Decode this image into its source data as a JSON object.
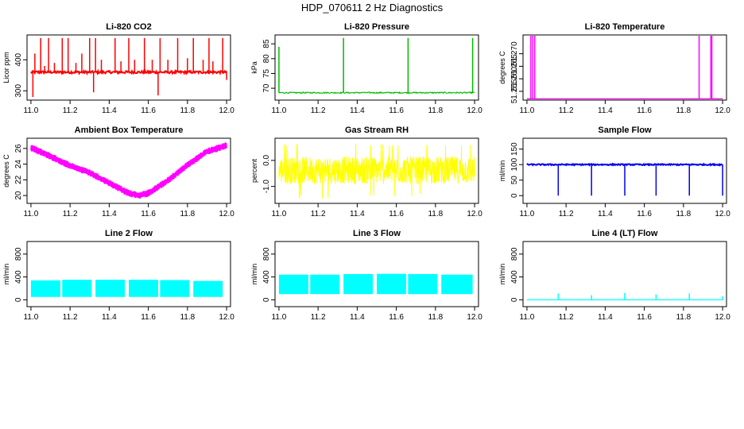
{
  "figure": {
    "title": "HDP_070611  2 Hz Diagnostics"
  },
  "chart_data": [
    {
      "id": "co2",
      "type": "line",
      "title": "Li-820 CO2",
      "xlabel": "",
      "ylabel": "Licor ppm",
      "color": "#ff0000",
      "xlim": [
        10.98,
        12.02
      ],
      "ylim": [
        270,
        480
      ],
      "xticks": [
        "11.0",
        "11.2",
        "11.4",
        "11.6",
        "11.8",
        "12.0"
      ],
      "yticks": [
        "300",
        "400"
      ],
      "series": [
        {
          "baseline": 360,
          "noise": 4,
          "spikes": [
            {
              "x": 11.01,
              "y": 280
            },
            {
              "x": 11.02,
              "y": 420
            },
            {
              "x": 11.05,
              "y": 470
            },
            {
              "x": 11.07,
              "y": 380
            },
            {
              "x": 11.09,
              "y": 470
            },
            {
              "x": 11.12,
              "y": 390
            },
            {
              "x": 11.16,
              "y": 470
            },
            {
              "x": 11.19,
              "y": 470
            },
            {
              "x": 11.23,
              "y": 390
            },
            {
              "x": 11.26,
              "y": 420
            },
            {
              "x": 11.3,
              "y": 470
            },
            {
              "x": 11.32,
              "y": 295
            },
            {
              "x": 11.33,
              "y": 470
            },
            {
              "x": 11.36,
              "y": 400
            },
            {
              "x": 11.43,
              "y": 470
            },
            {
              "x": 11.46,
              "y": 395
            },
            {
              "x": 11.5,
              "y": 470
            },
            {
              "x": 11.53,
              "y": 400
            },
            {
              "x": 11.58,
              "y": 470
            },
            {
              "x": 11.62,
              "y": 400
            },
            {
              "x": 11.65,
              "y": 285
            },
            {
              "x": 11.66,
              "y": 470
            },
            {
              "x": 11.7,
              "y": 400
            },
            {
              "x": 11.75,
              "y": 470
            },
            {
              "x": 11.8,
              "y": 405
            },
            {
              "x": 11.83,
              "y": 470
            },
            {
              "x": 11.88,
              "y": 400
            },
            {
              "x": 11.91,
              "y": 470
            },
            {
              "x": 11.93,
              "y": 395
            },
            {
              "x": 11.98,
              "y": 470
            },
            {
              "x": 12.0,
              "y": 335
            }
          ]
        }
      ]
    },
    {
      "id": "pressure",
      "type": "line",
      "title": "Li-820 Pressure",
      "xlabel": "",
      "ylabel": "kPa",
      "color": "#00bb00",
      "xlim": [
        10.98,
        12.02
      ],
      "ylim": [
        66,
        88
      ],
      "xticks": [
        "11.0",
        "11.2",
        "11.4",
        "11.6",
        "11.8",
        "12.0"
      ],
      "yticks": [
        "70",
        "75",
        "80",
        "85"
      ],
      "series": [
        {
          "baseline": 68.5,
          "noise": 0.2,
          "spikes": [
            {
              "x": 11.0,
              "y": 84
            },
            {
              "x": 11.33,
              "y": 87
            },
            {
              "x": 11.66,
              "y": 87
            },
            {
              "x": 11.99,
              "y": 87
            }
          ]
        }
      ]
    },
    {
      "id": "licor_temp",
      "type": "line",
      "title": "Li-820 Temperature",
      "xlabel": "",
      "ylabel": "degrees C",
      "color": "#ff00ff",
      "xlim": [
        10.98,
        12.02
      ],
      "ylim": [
        51.2515,
        51.2775
      ],
      "xticks": [
        "11.0",
        "11.2",
        "11.4",
        "11.6",
        "11.8",
        "12.0"
      ],
      "yticks": [
        "51.255",
        "51.260",
        "51.265",
        "51.270"
      ],
      "series": [
        {
          "baseline": 51.252,
          "noise": 0,
          "spikes": [
            {
              "x": 11.02,
              "y": 51.278
            },
            {
              "x": 11.03,
              "y": 51.278
            },
            {
              "x": 11.04,
              "y": 51.278
            },
            {
              "x": 11.88,
              "y": 51.278
            },
            {
              "x": 11.94,
              "y": 51.278
            },
            {
              "x": 11.945,
              "y": 51.278
            }
          ]
        }
      ]
    },
    {
      "id": "box_temp",
      "type": "line",
      "title": "Ambient Box Temperature",
      "xlabel": "",
      "ylabel": "degrees C",
      "color": "#ff00ff",
      "xlim": [
        10.98,
        12.02
      ],
      "ylim": [
        19.0,
        27.3
      ],
      "xticks": [
        "11.0",
        "11.2",
        "11.4",
        "11.6",
        "11.8",
        "12.0"
      ],
      "yticks": [
        "20",
        "22",
        "24",
        "26"
      ],
      "series": [
        {
          "band": 0.9,
          "x": [
            11.0,
            11.1,
            11.2,
            11.3,
            11.4,
            11.5,
            11.55,
            11.6,
            11.7,
            11.8,
            11.9,
            12.0
          ],
          "y": [
            26.1,
            25.0,
            23.8,
            22.9,
            21.6,
            20.3,
            20.0,
            20.3,
            21.9,
            23.9,
            25.6,
            26.4
          ]
        }
      ]
    },
    {
      "id": "rh",
      "type": "line",
      "title": "Gas Stream RH",
      "xlabel": "",
      "ylabel": "percent",
      "color": "#ffff00",
      "xlim": [
        10.98,
        12.02
      ],
      "ylim": [
        -1.65,
        0.85
      ],
      "xticks": [
        "11.0",
        "11.2",
        "11.4",
        "11.6",
        "11.8",
        "12.0"
      ],
      "yticks": [
        "-1.0",
        "0.0"
      ],
      "series": [
        {
          "baseline": -0.4,
          "band": [
            -0.9,
            0.15
          ],
          "extremes": [
            -1.5,
            0.65
          ]
        }
      ]
    },
    {
      "id": "sample_flow",
      "type": "line",
      "title": "Sample Flow",
      "xlabel": "",
      "ylabel": "ml/min",
      "color": "#0000ee",
      "xlim": [
        10.98,
        12.02
      ],
      "ylim": [
        -25,
        185
      ],
      "xticks": [
        "11.0",
        "11.2",
        "11.4",
        "11.6",
        "11.8",
        "12.0"
      ],
      "yticks": [
        "0",
        "50",
        "100",
        "150"
      ],
      "series": [
        {
          "baseline": 100,
          "noise": 2,
          "drops": [
            {
              "x": 11.16,
              "y": 0
            },
            {
              "x": 11.33,
              "y": 0
            },
            {
              "x": 11.5,
              "y": 0
            },
            {
              "x": 11.66,
              "y": 0
            },
            {
              "x": 11.83,
              "y": 0
            },
            {
              "x": 12.0,
              "y": 0
            }
          ]
        }
      ]
    },
    {
      "id": "line2",
      "type": "area",
      "title": "Line 2 Flow",
      "xlabel": "",
      "ylabel": "ml/min",
      "color": "#00ffff",
      "xlim": [
        10.98,
        12.02
      ],
      "ylim": [
        -120,
        1020
      ],
      "xticks": [
        "11.0",
        "11.2",
        "11.4",
        "11.6",
        "11.8",
        "12.0"
      ],
      "yticks": [
        "0",
        "400",
        "800"
      ],
      "series": [
        {
          "blocks": [
            {
              "x0": 11.0,
              "x1": 11.15,
              "lo": 50,
              "hi": 340
            },
            {
              "x0": 11.16,
              "x1": 11.31,
              "lo": 50,
              "hi": 350
            },
            {
              "x0": 11.33,
              "x1": 11.48,
              "lo": 50,
              "hi": 350
            },
            {
              "x0": 11.5,
              "x1": 11.65,
              "lo": 50,
              "hi": 350
            },
            {
              "x0": 11.66,
              "x1": 11.81,
              "lo": 50,
              "hi": 345
            },
            {
              "x0": 11.83,
              "x1": 11.98,
              "lo": 50,
              "hi": 330
            }
          ]
        }
      ]
    },
    {
      "id": "line3",
      "type": "area",
      "title": "Line 3 Flow",
      "xlabel": "",
      "ylabel": "ml/min",
      "color": "#00ffff",
      "xlim": [
        10.98,
        12.02
      ],
      "ylim": [
        -120,
        1020
      ],
      "xticks": [
        "11.0",
        "11.2",
        "11.4",
        "11.6",
        "11.8",
        "12.0"
      ],
      "yticks": [
        "0",
        "400",
        "800"
      ],
      "series": [
        {
          "blocks": [
            {
              "x0": 11.0,
              "x1": 11.15,
              "lo": 100,
              "hi": 440
            },
            {
              "x0": 11.16,
              "x1": 11.31,
              "lo": 100,
              "hi": 440
            },
            {
              "x0": 11.33,
              "x1": 11.48,
              "lo": 100,
              "hi": 450
            },
            {
              "x0": 11.5,
              "x1": 11.65,
              "lo": 100,
              "hi": 455
            },
            {
              "x0": 11.66,
              "x1": 11.81,
              "lo": 100,
              "hi": 450
            },
            {
              "x0": 11.83,
              "x1": 11.99,
              "lo": 100,
              "hi": 440
            }
          ]
        }
      ]
    },
    {
      "id": "line4",
      "type": "line",
      "title": "Line 4 (LT) Flow",
      "xlabel": "",
      "ylabel": "ml/min",
      "color": "#00ffff",
      "xlim": [
        10.98,
        12.02
      ],
      "ylim": [
        -120,
        1020
      ],
      "xticks": [
        "11.0",
        "11.2",
        "11.4",
        "11.6",
        "11.8",
        "12.0"
      ],
      "yticks": [
        "0",
        "400",
        "800"
      ],
      "series": [
        {
          "baseline": 0,
          "noise": 0,
          "spikes": [
            {
              "x": 11.16,
              "y": 110
            },
            {
              "x": 11.33,
              "y": 80
            },
            {
              "x": 11.5,
              "y": 120
            },
            {
              "x": 11.66,
              "y": 95
            },
            {
              "x": 11.83,
              "y": 110
            },
            {
              "x": 12.0,
              "y": 60
            }
          ]
        }
      ]
    }
  ]
}
